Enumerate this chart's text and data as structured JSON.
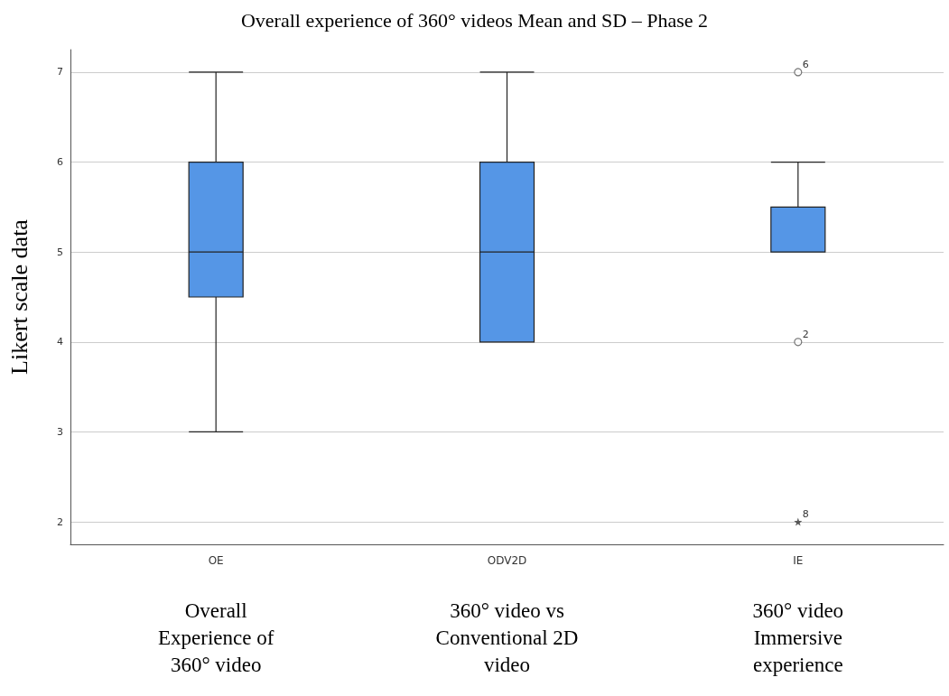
{
  "chart_data": {
    "type": "box",
    "title": "Overall experience of 360° videos Mean and SD – Phase 2",
    "ylabel": "Likert scale data",
    "categories": [
      "OE",
      "ODV2D",
      "IE"
    ],
    "series": [
      {
        "color": "#5596e6",
        "boxes": [
          {
            "low": 3,
            "q1": 4.5,
            "median": 5,
            "q3": 6,
            "high": 7
          },
          {
            "low": 4,
            "q1": 4,
            "median": 5,
            "q3": 6,
            "high": 7
          },
          {
            "low": 5,
            "q1": 5,
            "median": 5,
            "q3": 5.5,
            "high": 6,
            "outliers": [
              7,
              4,
              2
            ]
          }
        ]
      }
    ],
    "ylim": [
      1.75,
      7.25
    ],
    "yticks": [
      2,
      3,
      4,
      5,
      6,
      7
    ],
    "grid": "y",
    "annotations": [
      "6",
      "2",
      "8",
      "Overall\nExperience of\n360° video",
      "360° video vs\nConventional 2D\nvideo",
      "360° video\nImmersive\nexperience"
    ]
  }
}
